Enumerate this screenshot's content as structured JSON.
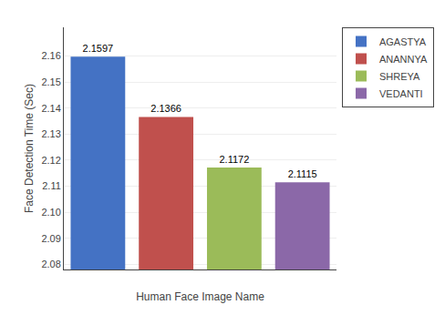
{
  "chart_data": {
    "type": "bar",
    "categories": [
      "AGASTYA",
      "ANANNYA",
      "SHREYA",
      "VEDANTI"
    ],
    "values": [
      2.1597,
      2.1366,
      2.1172,
      2.1115
    ],
    "colors": [
      "#4472C4",
      "#C0504D",
      "#9BBB59",
      "#8B68A8"
    ],
    "xlabel": "Human Face Image Name",
    "ylabel": "Face Detection Time (Sec)",
    "ylim": [
      2.078,
      2.171
    ],
    "yticks": [
      2.08,
      2.09,
      {
        "value": 2.1,
        "label": "2.10"
      },
      2.11,
      2.12,
      2.13,
      2.14,
      2.15,
      2.16
    ],
    "grid": true,
    "legend": "upper right",
    "data_labels": true,
    "tick_labels": "y"
  }
}
